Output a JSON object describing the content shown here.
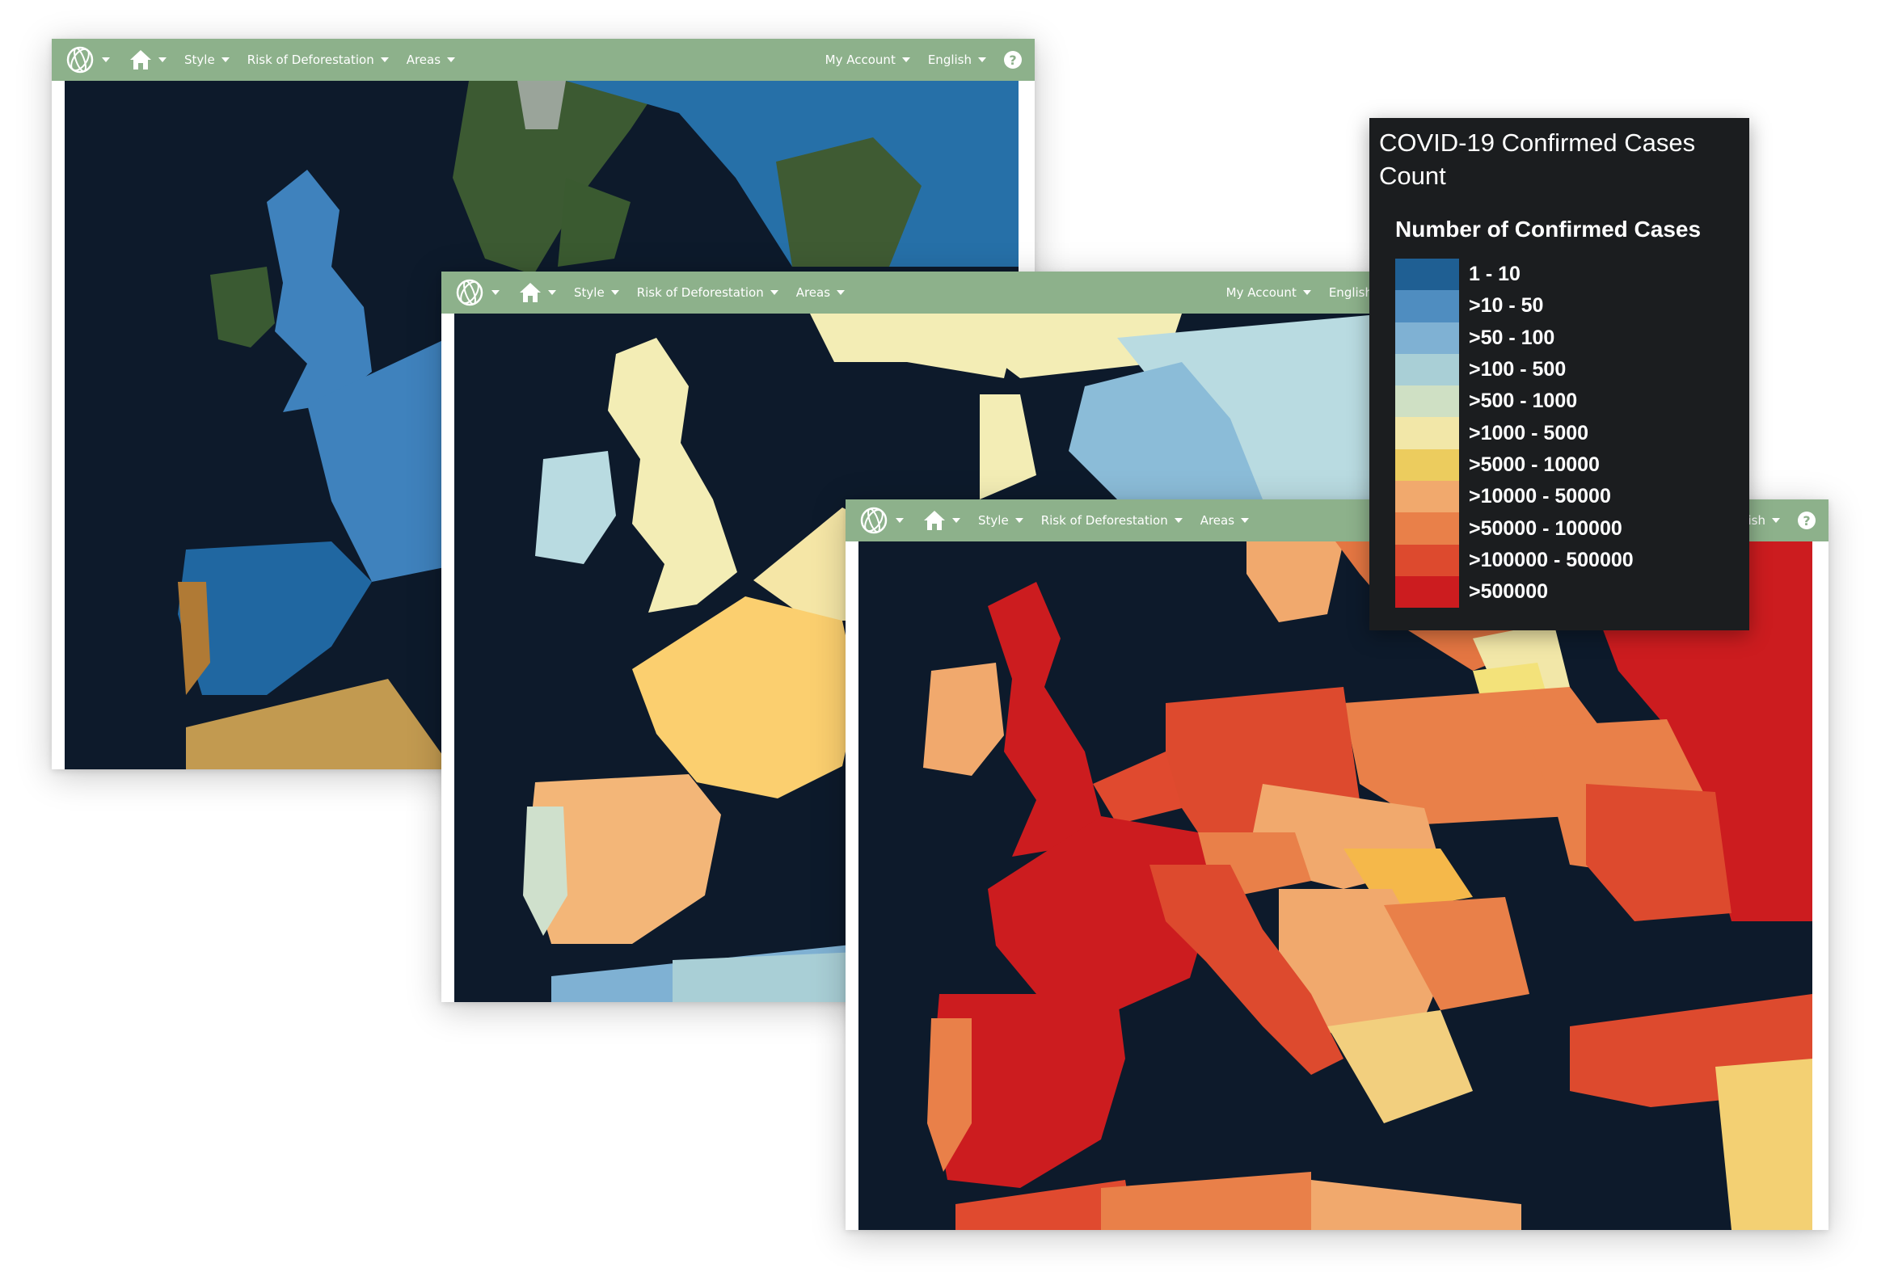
{
  "toolbar": {
    "menu_style": "Style",
    "menu_risk": "Risk of Deforestation",
    "menu_areas": "Areas",
    "my_account": "My Account",
    "language": "English",
    "help": "?"
  },
  "toolbar_partial_language": "ish",
  "legend": {
    "title": "COVID-19 Confirmed Cases Count",
    "subtitle": "Number of Confirmed Cases",
    "items": [
      {
        "label": "1 - 10",
        "color": "#1f5f93"
      },
      {
        "label": ">10 - 50",
        "color": "#4f8dc0"
      },
      {
        "label": ">50 - 100",
        "color": "#7fb1d3"
      },
      {
        "label": ">100 - 500",
        "color": "#a9cfd6"
      },
      {
        "label": ">500 - 1000",
        "color": "#cfe0c4"
      },
      {
        "label": ">1000 - 5000",
        "color": "#f2e7a8"
      },
      {
        "label": ">5000 - 10000",
        "color": "#eccc5e"
      },
      {
        "label": ">10000 - 50000",
        "color": "#f1a96d"
      },
      {
        "label": ">50000 - 100000",
        "color": "#e98049"
      },
      {
        "label": ">100000 - 500000",
        "color": "#dd4a2e"
      },
      {
        "label": ">500000",
        "color": "#cc1c1f"
      }
    ]
  },
  "colors": {
    "toolbar": "#8db18b",
    "ocean": "#0e1a2c",
    "legend_bg": "#1b1d1f"
  }
}
